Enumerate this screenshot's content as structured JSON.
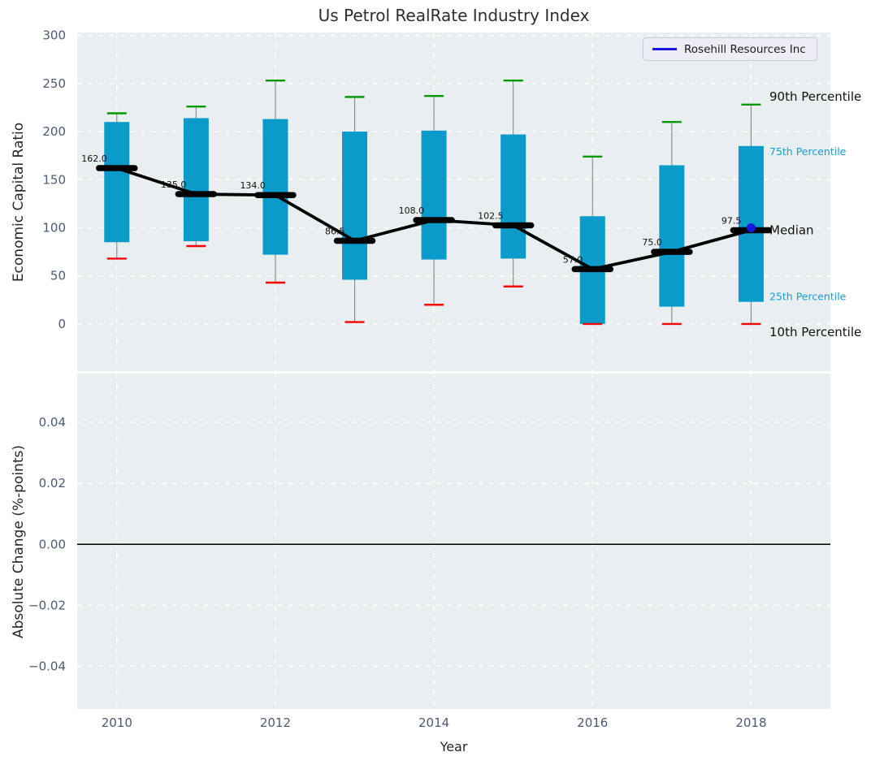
{
  "chart_data": [
    {
      "type": "box",
      "title": "Us Petrol RealRate Industry Index",
      "xlabel": "",
      "ylabel": "Economic Capital Ratio",
      "xlim": [
        2009.5,
        2019.0
      ],
      "ylim": [
        -49,
        303
      ],
      "yticks": [
        300,
        250,
        200,
        150,
        100,
        50,
        0
      ],
      "xticks": [
        2010,
        2012,
        2014,
        2016,
        2018
      ],
      "grid": true,
      "legend": {
        "label": "Rosehill Resources Inc",
        "position": "upper right",
        "line_color": "#1717dd"
      },
      "boxes": [
        {
          "year": 2010,
          "p90": 219,
          "p75": 210,
          "median": 162.0,
          "p25": 85,
          "p10": 68,
          "label": "162.0"
        },
        {
          "year": 2011,
          "p90": 226,
          "p75": 214,
          "median": 135.0,
          "p25": 86,
          "p10": 81,
          "label": "135.0"
        },
        {
          "year": 2012,
          "p90": 253,
          "p75": 213,
          "median": 134.0,
          "p25": 72,
          "p10": 43,
          "label": "134.0"
        },
        {
          "year": 2013,
          "p90": 236,
          "p75": 200,
          "median": 86.5,
          "p25": 46,
          "p10": 2,
          "label": "86.5"
        },
        {
          "year": 2014,
          "p90": 237,
          "p75": 201,
          "median": 108.0,
          "p25": 67,
          "p10": 20,
          "label": "108.0"
        },
        {
          "year": 2015,
          "p90": 253,
          "p75": 197,
          "median": 102.5,
          "p25": 68,
          "p10": 39,
          "label": "102.5"
        },
        {
          "year": 2016,
          "p90": 174,
          "p75": 112,
          "median": 57.0,
          "p25": 0,
          "p10": 0,
          "label": "57.0"
        },
        {
          "year": 2017,
          "p90": 210,
          "p75": 165,
          "median": 75.0,
          "p25": 18,
          "p10": 0,
          "label": "75.0"
        },
        {
          "year": 2018,
          "p90": 228,
          "p75": 185,
          "median": 97.5,
          "p25": 23,
          "p10": 0,
          "label": "97.5"
        }
      ],
      "company_point": {
        "name": "Rosehill Resources Inc",
        "year": 2018,
        "value": 100,
        "color": "#1717dd"
      },
      "percentile_labels": [
        {
          "text": "90th Percentile",
          "anchor": "p90",
          "color": "#111111",
          "size": 15
        },
        {
          "text": "75th Percentile",
          "anchor": "p75",
          "color": "#149ed2",
          "size": 12.5
        },
        {
          "text": "Median",
          "anchor": "median",
          "color": "#111111",
          "size": 15
        },
        {
          "text": "25th Percentile",
          "anchor": "p25",
          "color": "#149ed2",
          "size": 12.5
        },
        {
          "text": "10th Percentile",
          "anchor": "p10",
          "color": "#111111",
          "size": 15
        }
      ],
      "colors": {
        "box": "#0a9bcb",
        "whisker": "#858585",
        "cap_top": "#009a00",
        "cap_bottom": "#f50000",
        "median": "#000000",
        "background": "#e9eef0",
        "grid": "#ffffff",
        "tick": "#4c5a72"
      }
    },
    {
      "type": "line",
      "title": "",
      "xlabel": "Year",
      "ylabel": "Absolute Change (%-points)",
      "xlim": [
        2009.5,
        2019.0
      ],
      "ylim": [
        -0.054,
        0.056
      ],
      "yticks": [
        0.04,
        0.02,
        0.0,
        -0.02,
        -0.04
      ],
      "ytick_labels": [
        "0.04",
        "0.02",
        "0.00",
        "−0.02",
        "−0.04"
      ],
      "xticks": [
        2010,
        2012,
        2014,
        2016,
        2018
      ],
      "xtick_labels": [
        "2010",
        "2012",
        "2014",
        "2016",
        "2018"
      ],
      "grid": true,
      "zero_line": 0.0,
      "series": []
    }
  ]
}
